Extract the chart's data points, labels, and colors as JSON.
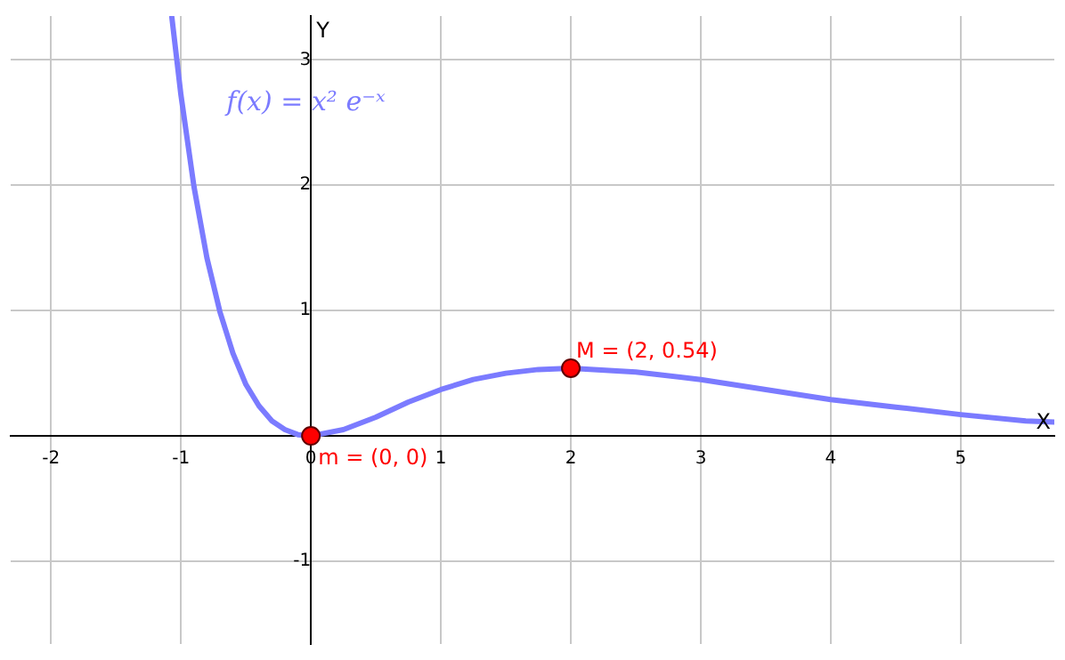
{
  "chart_data": {
    "type": "line",
    "xlabel": "X",
    "ylabel": "Y",
    "xlim": [
      -2.31,
      5.72
    ],
    "ylim": [
      -1.66,
      3.35
    ],
    "xticks": [
      -2,
      -1,
      0,
      1,
      2,
      3,
      4,
      5
    ],
    "yticks": [
      -1,
      {
        "value": 0,
        "label": null
      },
      1,
      2,
      3
    ],
    "grid": true,
    "legend": false,
    "marker": "none",
    "line_style": "solid",
    "series": [
      {
        "name": "f(x) = x² e⁻ˣ",
        "color": "#7b7bff",
        "x": [
          -1.07,
          -1,
          -0.9,
          -0.8,
          -0.7,
          -0.6,
          -0.5,
          -0.4,
          -0.3,
          -0.2,
          -0.1,
          0,
          0.25,
          0.5,
          0.75,
          1,
          1.25,
          1.5,
          1.75,
          2,
          2.5,
          3,
          3.5,
          4,
          4.5,
          5,
          5.5,
          5.72
        ],
        "values": [
          3.34,
          2.72,
          1.99,
          1.42,
          0.99,
          0.66,
          0.41,
          0.24,
          0.12,
          0.05,
          0.01,
          0,
          0.05,
          0.15,
          0.27,
          0.37,
          0.45,
          0.5,
          0.53,
          0.54,
          0.51,
          0.45,
          0.37,
          0.29,
          0.23,
          0.17,
          0.12,
          0.11
        ]
      },
      {
        "type": "scatter",
        "marker": "circle",
        "color": "#ff0000",
        "x": [
          0,
          2
        ],
        "values": [
          0,
          0.54
        ]
      }
    ],
    "annotations": [
      {
        "text": "M = (2, 0.54)",
        "x": 2,
        "y": 0.54
      },
      {
        "text": "m = (0, 0)",
        "x": 0,
        "y": 0
      }
    ]
  }
}
